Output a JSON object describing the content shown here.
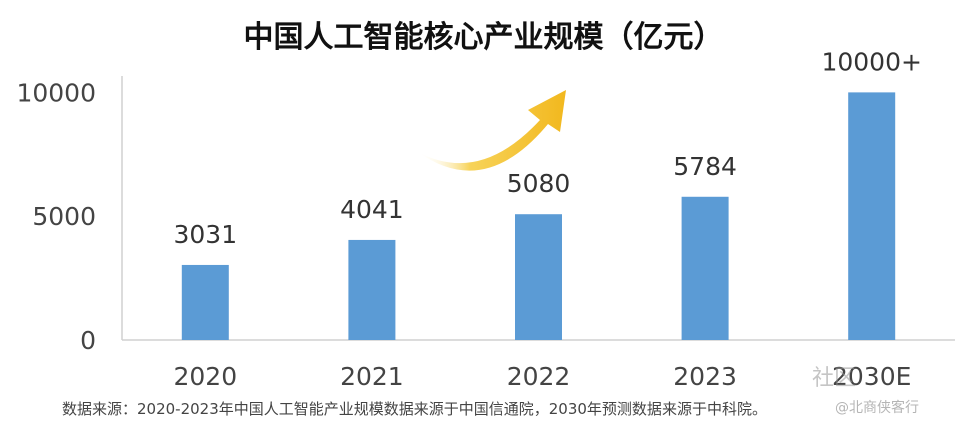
{
  "chart_data": {
    "type": "bar",
    "title": "中国人工智能核心产业规模（亿元）",
    "categories": [
      "2020",
      "2021",
      "2022",
      "2023",
      "2030E"
    ],
    "values": [
      3031,
      4041,
      5080,
      5784,
      10000
    ],
    "data_labels": [
      "3031",
      "4041",
      "5080",
      "5784",
      "10000+"
    ],
    "yticks": [
      "0",
      "5000",
      "10000"
    ],
    "ylim": [
      0,
      10500
    ],
    "grid": false,
    "bar_color": "#5b9bd5",
    "arrow_color": "#f5c542"
  },
  "source_note": "数据来源：2020-2023年中国人工智能产业规模数据来源于中国信通院，2030年预测数据来源于中科院。",
  "watermark": {
    "main": "社区",
    "sub": "@北商侠客行"
  }
}
